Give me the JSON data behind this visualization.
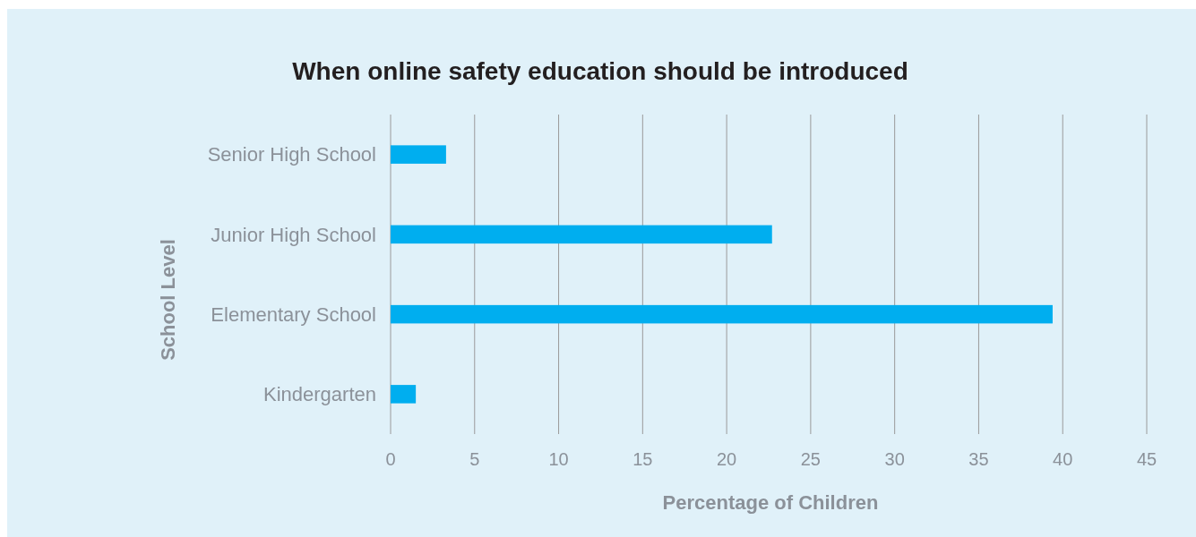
{
  "chart_data": {
    "type": "bar",
    "orientation": "horizontal",
    "title": "When online safety education should be introduced",
    "xlabel": "Percentage of Children",
    "ylabel": "School Level",
    "categories": [
      "Senior High School",
      "Junior High School",
      "Elementary School",
      "Kindergarten"
    ],
    "values": [
      3.3,
      22.7,
      39.4,
      1.5
    ],
    "color": "#00aeef",
    "xlim": [
      0,
      45
    ],
    "xticks": [
      0,
      5,
      10,
      15,
      20,
      25,
      30,
      35,
      40,
      45
    ],
    "grid": "x"
  }
}
